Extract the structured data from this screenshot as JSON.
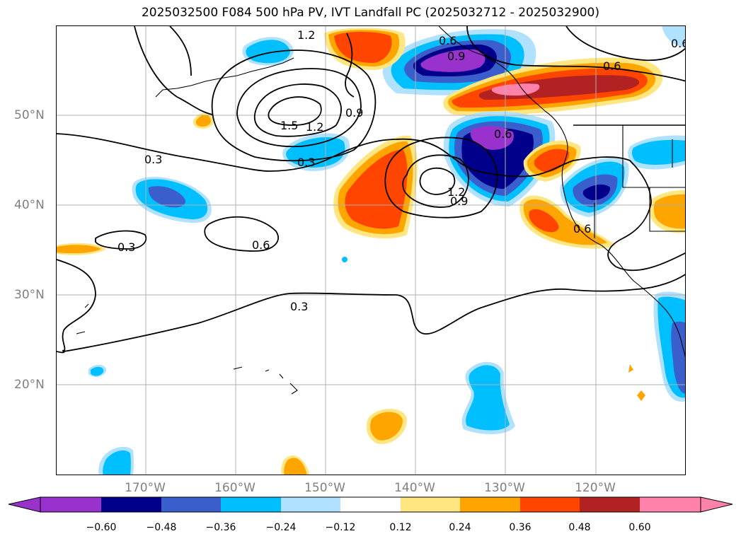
{
  "title": "2025032500 F084 500 hPa PV, IVT Landfall PC (2025032712 - 2025032900)",
  "lat_labels": [
    "50°N",
    "40°N",
    "30°N",
    "20°N"
  ],
  "lon_labels": [
    "170°W",
    "160°W",
    "150°W",
    "140°W",
    "130°W",
    "120°W"
  ],
  "colorbar": {
    "ticks": [
      "−0.60",
      "−0.48",
      "−0.36",
      "−0.24",
      "−0.12",
      "0.12",
      "0.24",
      "0.36",
      "0.48",
      "0.60"
    ],
    "colors": [
      "#9932cc",
      "#00008b",
      "#3a5fcd",
      "#00bfff",
      "#b0e2ff",
      "#ffffff",
      "#ffe680",
      "#ffa500",
      "#ff4500",
      "#b22222",
      "#ff82ab"
    ]
  },
  "contour_labels": [
    "1.2",
    "1.5",
    "1.2",
    "0.9",
    "0.3",
    "0.3",
    "0.3",
    "0.6",
    "0.3",
    "0.6",
    "1.2",
    "0.9",
    "0.6",
    "0.6",
    "0.6",
    "0.9",
    "0.6"
  ]
}
